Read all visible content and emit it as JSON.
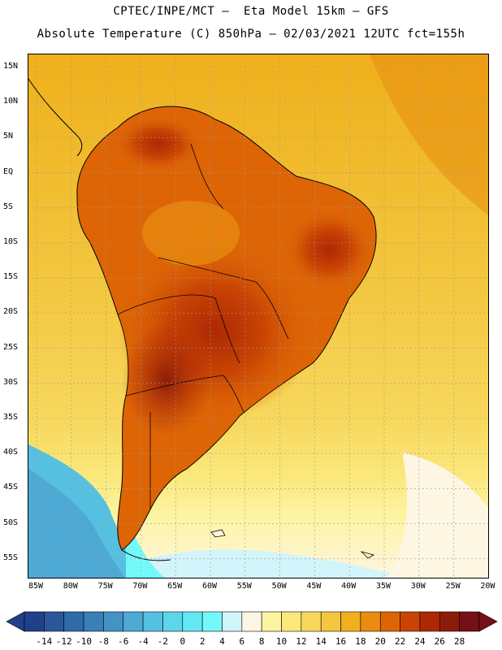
{
  "header": {
    "line1": "CPTEC/INPE/MCT –  Eta Model 15km – GFS",
    "line2": "Absolute Temperature (C) 850hPa – 02/03/2021 12UTC fct=155h"
  },
  "map": {
    "lat_labels": [
      "15N",
      "10N",
      "5N",
      "EQ",
      "5S",
      "10S",
      "15S",
      "20S",
      "25S",
      "30S",
      "35S",
      "40S",
      "45S",
      "50S",
      "55S"
    ],
    "lon_labels": [
      "85W",
      "80W",
      "75W",
      "70W",
      "65W",
      "60W",
      "55W",
      "50W",
      "45W",
      "40W",
      "35W",
      "30W",
      "25W",
      "20W"
    ],
    "grid": "dotted",
    "field": "temperature",
    "continent": "South America"
  },
  "colorbar": {
    "labels": [
      "-14",
      "-12",
      "-10",
      "-8",
      "-6",
      "-4",
      "-2",
      "0",
      "2",
      "4",
      "6",
      "8",
      "10",
      "12",
      "14",
      "16",
      "18",
      "20",
      "22",
      "24",
      "26",
      "28"
    ],
    "colors": [
      "#213f8a",
      "#2a5799",
      "#306aa8",
      "#3a7fb7",
      "#4493c5",
      "#4eaad5",
      "#56c0e0",
      "#5dd5ea",
      "#62e8f2",
      "#74f9fb",
      "#d2f4fb",
      "#fdf6e2",
      "#fdf4a2",
      "#fbe77a",
      "#f7d85d",
      "#f3c740",
      "#efb01b",
      "#e88d0f",
      "#dd6506",
      "#c94404",
      "#ae2805",
      "#8c1c0a",
      "#760f18"
    ]
  }
}
